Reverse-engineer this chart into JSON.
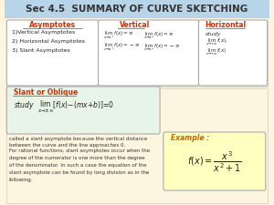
{
  "title": "Sec 4.5  SUMMARY OF CURVE SKETCHING",
  "title_bg": "#b8d4e8",
  "main_bg": "#fdf5e0",
  "box_bg": "#ffffff",
  "header_color": "#cc3300",
  "text_color": "#222222",
  "link_color": "#0000cc",
  "asymptotes_box": {
    "title": "Asymptotes",
    "items": [
      "1)Vertical Asymptotes",
      "2) Horizontal Asymptotes",
      "3) Slant Asymptotes"
    ]
  },
  "vertical_box": {
    "title": "Vertical",
    "lines": [
      "lim  f(x) = ∞      lim  f(x) = ∞",
      "x→a⁺                x→a⁻",
      "lim  f(x) = -∞     lim  f(x) = -∞",
      "x→a⁺                x→a⁻"
    ]
  },
  "horizontal_box": {
    "title": "Horizontal",
    "lines": [
      "study",
      "lim  f(x),",
      "x→+∞",
      "lim  f(x)",
      "x→+∞"
    ]
  },
  "slant_box": {
    "title": "Slant or Oblique",
    "formula": "study   lim [f(x) − (mx + b)] = 0",
    "formula_sub": "x→±∞"
  },
  "body_text1": "called a slant asymptote because the vertical distance\nbetween the curve and the line approaches 0.",
  "body_text2": "For rational functions, slant asymptotes occur when the\ndegree of the numerator is one more than the degree\nof the denominator. In such a case the equation of the\nslant asymptote can be found by long division as in the\nfollowing.",
  "example_box": {
    "title": "Example :",
    "formula": "$f(x) = \\dfrac{x^3}{x^2+1}$"
  }
}
